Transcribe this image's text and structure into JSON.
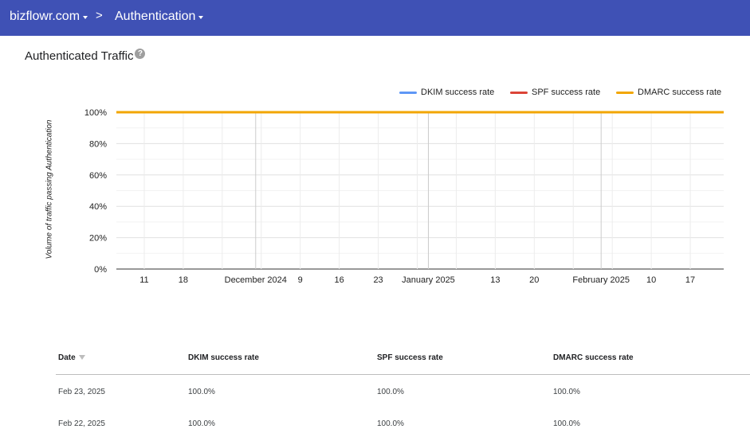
{
  "topbar": {
    "domain": "bizflowr.com",
    "separator": ">",
    "page": "Authentication"
  },
  "section": {
    "title": "Authenticated Traffic",
    "help_icon": "?"
  },
  "chart_data": {
    "type": "line",
    "title": "",
    "ylabel": "Volume of traffic passing Authentication",
    "xlabel": "",
    "ylim": [
      0,
      100
    ],
    "y_ticks": [
      "0%",
      "20%",
      "40%",
      "60%",
      "80%",
      "100%"
    ],
    "x_ticks": [
      "11",
      "18",
      "December 2024",
      "9",
      "16",
      "23",
      "January 2025",
      "13",
      "20",
      "February 2025",
      "10",
      "17"
    ],
    "x_range": [
      "2024-11-06",
      "2025-02-23"
    ],
    "legend_position": "top-right",
    "grid": true,
    "series": [
      {
        "name": "DKIM success rate",
        "color": "#5e97f6",
        "values": [
          100,
          100
        ]
      },
      {
        "name": "SPF success rate",
        "color": "#db4437",
        "values": [
          100,
          100
        ]
      },
      {
        "name": "DMARC success rate",
        "color": "#f2a600",
        "values": [
          100,
          100
        ]
      }
    ]
  },
  "table": {
    "headers": [
      "Date",
      "DKIM success rate",
      "SPF success rate",
      "DMARC success rate"
    ],
    "rows": [
      [
        "Feb 23, 2025",
        "100.0%",
        "100.0%",
        "100.0%"
      ],
      [
        "Feb 22, 2025",
        "100.0%",
        "100.0%",
        "100.0%"
      ]
    ]
  }
}
